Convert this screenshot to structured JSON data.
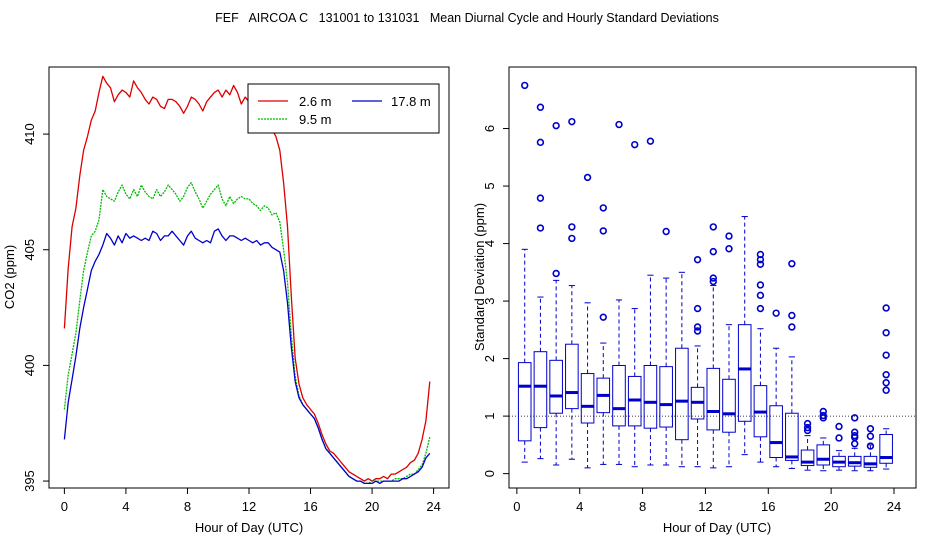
{
  "title": "FEF   AIRCOA C   131001 to 131031   Mean Diurnal Cycle and Hourly Standard Deviations",
  "colors": {
    "red": "#dd0000",
    "green": "#00bb00",
    "blue": "#0000cc"
  },
  "chart_data": [
    {
      "type": "line",
      "xlabel": "Hour of Day (UTC)",
      "ylabel": "CO2 (ppm)",
      "xlim": [
        -1,
        25
      ],
      "ylim": [
        394.7,
        412.9
      ],
      "xticks": [
        0,
        4,
        8,
        12,
        16,
        20,
        24
      ],
      "yticks": [
        395,
        400,
        405,
        410
      ],
      "legend": {
        "position": "top-right",
        "entries": [
          "2.6 m",
          "9.5 m",
          "17.8 m"
        ]
      },
      "x": [
        0,
        0.25,
        0.5,
        0.75,
        1,
        1.25,
        1.5,
        1.75,
        2,
        2.25,
        2.5,
        2.75,
        3,
        3.25,
        3.5,
        3.75,
        4,
        4.25,
        4.5,
        4.75,
        5,
        5.25,
        5.5,
        5.75,
        6,
        6.25,
        6.5,
        6.75,
        7,
        7.25,
        7.5,
        7.75,
        8,
        8.25,
        8.5,
        8.75,
        9,
        9.25,
        9.5,
        9.75,
        10,
        10.25,
        10.5,
        10.75,
        11,
        11.25,
        11.5,
        11.75,
        12,
        12.25,
        12.5,
        12.75,
        13,
        13.25,
        13.5,
        13.75,
        14,
        14.25,
        14.5,
        14.75,
        15,
        15.25,
        15.5,
        15.75,
        16,
        16.25,
        16.5,
        16.75,
        17,
        17.25,
        17.5,
        17.75,
        18,
        18.25,
        18.5,
        18.75,
        19,
        19.25,
        19.5,
        19.75,
        20,
        20.25,
        20.5,
        20.75,
        21,
        21.25,
        21.5,
        21.75,
        22,
        22.25,
        22.5,
        22.75,
        23,
        23.25,
        23.5,
        23.75
      ],
      "series": [
        {
          "name": "2.6 m",
          "color": "#dd0000",
          "values": [
            401.6,
            404.2,
            406.0,
            406.8,
            408.2,
            409.3,
            409.9,
            410.6,
            411.0,
            411.8,
            412.5,
            412.2,
            412.0,
            411.4,
            411.7,
            411.9,
            411.8,
            411.6,
            412.3,
            412.0,
            411.8,
            411.5,
            411.3,
            411.6,
            411.5,
            411.2,
            411.1,
            411.5,
            411.5,
            411.4,
            411.2,
            410.9,
            411.2,
            411.6,
            411.5,
            411.3,
            411.0,
            411.4,
            411.6,
            411.8,
            411.9,
            411.6,
            411.9,
            411.7,
            412.1,
            411.8,
            411.3,
            411.6,
            411.4,
            411.2,
            411.0,
            410.9,
            410.7,
            410.5,
            410.2,
            409.9,
            409.3,
            407.9,
            406.0,
            403.0,
            400.3,
            399.2,
            398.6,
            398.3,
            398.1,
            397.9,
            397.5,
            397.0,
            396.6,
            396.3,
            396.2,
            396.0,
            395.8,
            395.6,
            395.4,
            395.3,
            395.2,
            395.1,
            395.0,
            395.1,
            395.0,
            395.1,
            395.1,
            395.2,
            395.1,
            395.3,
            395.3,
            395.4,
            395.5,
            395.6,
            395.8,
            395.9,
            396.2,
            396.8,
            397.6,
            399.3
          ]
        },
        {
          "name": "9.5 m",
          "color": "#00bb00",
          "values": [
            398.1,
            399.6,
            400.5,
            401.4,
            402.8,
            404.1,
            404.9,
            405.6,
            405.8,
            406.3,
            407.6,
            407.3,
            407.2,
            407.1,
            407.5,
            407.8,
            407.4,
            407.2,
            407.6,
            407.3,
            407.8,
            407.5,
            407.3,
            407.2,
            407.6,
            407.3,
            407.5,
            407.8,
            407.6,
            407.4,
            407.1,
            407.3,
            407.7,
            407.9,
            407.5,
            407.2,
            406.8,
            407.1,
            407.4,
            407.6,
            407.8,
            407.2,
            406.9,
            407.3,
            407.0,
            407.2,
            407.3,
            407.2,
            407.2,
            407.0,
            406.9,
            406.7,
            406.9,
            406.8,
            406.5,
            406.6,
            406.2,
            405.0,
            403.6,
            401.3,
            399.5,
            398.7,
            398.3,
            398.1,
            397.9,
            397.7,
            397.3,
            396.8,
            396.4,
            396.2,
            396.0,
            395.8,
            395.6,
            395.4,
            395.2,
            395.1,
            395.0,
            395.0,
            394.9,
            394.9,
            395.0,
            395.0,
            395.0,
            395.0,
            395.0,
            395.0,
            395.1,
            395.1,
            395.1,
            395.2,
            395.3,
            395.3,
            395.5,
            395.7,
            396.2,
            396.9
          ]
        },
        {
          "name": "17.8 m",
          "color": "#0000cc",
          "values": [
            396.8,
            398.4,
            399.4,
            400.4,
            401.6,
            402.5,
            403.3,
            404.1,
            404.5,
            404.8,
            405.2,
            405.7,
            405.5,
            405.2,
            405.6,
            405.3,
            405.7,
            405.5,
            405.6,
            405.5,
            405.4,
            405.5,
            405.4,
            405.8,
            405.7,
            405.4,
            405.6,
            405.6,
            405.8,
            405.6,
            405.4,
            405.2,
            405.6,
            405.8,
            405.5,
            405.4,
            405.3,
            405.4,
            405.3,
            405.8,
            405.9,
            405.6,
            405.4,
            405.6,
            405.6,
            405.5,
            405.4,
            405.5,
            405.4,
            405.3,
            405.4,
            405.2,
            405.3,
            405.3,
            405.1,
            405.0,
            404.9,
            404.1,
            402.7,
            400.8,
            399.3,
            398.6,
            398.3,
            398.1,
            397.9,
            397.7,
            397.3,
            396.8,
            396.4,
            396.2,
            396.0,
            395.8,
            395.6,
            395.4,
            395.2,
            395.1,
            395.0,
            395.0,
            394.9,
            394.9,
            394.9,
            395.0,
            394.9,
            395.0,
            395.0,
            395.0,
            395.0,
            395.0,
            395.1,
            395.1,
            395.2,
            395.3,
            395.4,
            395.6,
            396.0,
            396.2
          ]
        }
      ]
    },
    {
      "type": "box",
      "xlabel": "Hour of Day (UTC)",
      "ylabel": "Standard Deviation (ppm)",
      "xlim": [
        -0.5,
        25.4
      ],
      "ylim": [
        -0.25,
        7.07
      ],
      "xticks": [
        0,
        4,
        8,
        12,
        16,
        20,
        24
      ],
      "yticks": [
        0,
        1,
        2,
        3,
        4,
        5,
        6
      ],
      "reference_line": 1.0,
      "color": "#0000cc",
      "boxes": [
        {
          "x": 0.5,
          "lower_whisker": 0.2,
          "q1": 0.57,
          "median": 1.52,
          "q3": 1.93,
          "upper_whisker": 3.9,
          "outliers": [
            6.75
          ]
        },
        {
          "x": 1.5,
          "lower_whisker": 0.26,
          "q1": 0.8,
          "median": 1.52,
          "q3": 2.12,
          "upper_whisker": 3.07,
          "outliers": [
            6.37,
            5.76,
            4.79,
            4.27
          ]
        },
        {
          "x": 2.5,
          "lower_whisker": 0.15,
          "q1": 1.05,
          "median": 1.35,
          "q3": 1.97,
          "upper_whisker": 3.36,
          "outliers": [
            6.05,
            3.48
          ]
        },
        {
          "x": 3.5,
          "lower_whisker": 0.25,
          "q1": 1.13,
          "median": 1.41,
          "q3": 2.25,
          "upper_whisker": 3.27,
          "outliers": [
            6.12,
            4.29,
            4.09
          ]
        },
        {
          "x": 4.5,
          "lower_whisker": 0.1,
          "q1": 0.88,
          "median": 1.17,
          "q3": 1.74,
          "upper_whisker": 2.97,
          "outliers": [
            5.15
          ]
        },
        {
          "x": 5.5,
          "lower_whisker": 0.16,
          "q1": 1.06,
          "median": 1.36,
          "q3": 1.66,
          "upper_whisker": 2.27,
          "outliers": [
            4.62,
            4.22,
            2.72
          ]
        },
        {
          "x": 6.5,
          "lower_whisker": 0.16,
          "q1": 0.83,
          "median": 1.13,
          "q3": 1.88,
          "upper_whisker": 3.02,
          "outliers": [
            6.07
          ]
        },
        {
          "x": 7.5,
          "lower_whisker": 0.12,
          "q1": 0.83,
          "median": 1.28,
          "q3": 1.69,
          "upper_whisker": 2.87,
          "outliers": [
            5.72
          ]
        },
        {
          "x": 8.5,
          "lower_whisker": 0.15,
          "q1": 0.79,
          "median": 1.24,
          "q3": 1.88,
          "upper_whisker": 3.45,
          "outliers": [
            5.78
          ]
        },
        {
          "x": 9.5,
          "lower_whisker": 0.15,
          "q1": 0.81,
          "median": 1.2,
          "q3": 1.86,
          "upper_whisker": 3.4,
          "outliers": [
            4.21
          ]
        },
        {
          "x": 10.5,
          "lower_whisker": 0.12,
          "q1": 0.59,
          "median": 1.26,
          "q3": 2.18,
          "upper_whisker": 3.5,
          "outliers": []
        },
        {
          "x": 11.5,
          "lower_whisker": 0.12,
          "q1": 0.95,
          "median": 1.24,
          "q3": 1.5,
          "upper_whisker": 2.22,
          "outliers": [
            3.72,
            2.87,
            2.55,
            2.48
          ]
        },
        {
          "x": 12.5,
          "lower_whisker": 0.1,
          "q1": 0.76,
          "median": 1.08,
          "q3": 1.83,
          "upper_whisker": 3.27,
          "outliers": [
            4.29,
            3.86,
            3.4,
            3.34
          ]
        },
        {
          "x": 13.5,
          "lower_whisker": 0.12,
          "q1": 0.72,
          "median": 1.04,
          "q3": 1.64,
          "upper_whisker": 2.59,
          "outliers": [
            4.13,
            3.91
          ]
        },
        {
          "x": 14.5,
          "lower_whisker": 0.33,
          "q1": 0.91,
          "median": 1.82,
          "q3": 2.59,
          "upper_whisker": 4.47,
          "outliers": []
        },
        {
          "x": 15.5,
          "lower_whisker": 0.2,
          "q1": 0.64,
          "median": 1.07,
          "q3": 1.53,
          "upper_whisker": 2.52,
          "outliers": [
            3.81,
            3.72,
            3.64,
            3.28,
            3.1,
            2.87
          ]
        },
        {
          "x": 16.5,
          "lower_whisker": 0.12,
          "q1": 0.28,
          "median": 0.54,
          "q3": 1.18,
          "upper_whisker": 2.18,
          "outliers": [
            2.79
          ]
        },
        {
          "x": 17.5,
          "lower_whisker": 0.09,
          "q1": 0.23,
          "median": 0.29,
          "q3": 1.05,
          "upper_whisker": 2.03,
          "outliers": [
            3.65,
            2.75,
            2.55
          ]
        },
        {
          "x": 18.5,
          "lower_whisker": 0.06,
          "q1": 0.14,
          "median": 0.2,
          "q3": 0.41,
          "upper_whisker": 0.66,
          "outliers": [
            0.87,
            0.8,
            0.75
          ]
        },
        {
          "x": 19.5,
          "lower_whisker": 0.05,
          "q1": 0.15,
          "median": 0.25,
          "q3": 0.5,
          "upper_whisker": 0.62,
          "outliers": [
            1.08,
            1.01,
            0.97
          ]
        },
        {
          "x": 20.5,
          "lower_whisker": 0.06,
          "q1": 0.12,
          "median": 0.2,
          "q3": 0.3,
          "upper_whisker": 0.4,
          "outliers": [
            0.82,
            0.62
          ]
        },
        {
          "x": 21.5,
          "lower_whisker": 0.05,
          "q1": 0.13,
          "median": 0.19,
          "q3": 0.3,
          "upper_whisker": 0.44,
          "outliers": [
            0.97,
            0.72,
            0.66,
            0.63,
            0.52
          ]
        },
        {
          "x": 22.5,
          "lower_whisker": 0.05,
          "q1": 0.11,
          "median": 0.17,
          "q3": 0.3,
          "upper_whisker": 0.5,
          "outliers": [
            0.78,
            0.65,
            0.48
          ]
        },
        {
          "x": 23.5,
          "lower_whisker": 0.08,
          "q1": 0.18,
          "median": 0.28,
          "q3": 0.68,
          "upper_whisker": 0.78,
          "outliers": [
            2.88,
            2.45,
            2.06,
            1.72,
            1.58,
            1.45
          ]
        }
      ]
    }
  ]
}
